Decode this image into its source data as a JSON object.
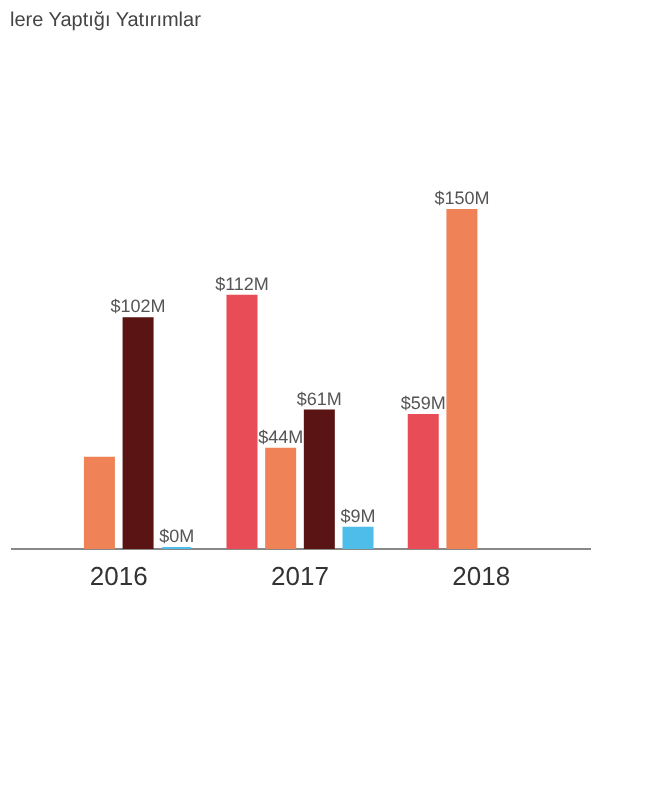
{
  "chart_data": {
    "type": "bar",
    "title": "lere Yaptığı Yatırımlar",
    "categories": [
      "2016",
      "2017",
      "2018"
    ],
    "series": [
      {
        "color": "#e84c57",
        "values": [
          null,
          112,
          59
        ],
        "value_labels": [
          null,
          "$112M",
          "$59M"
        ]
      },
      {
        "color": "#ef8256",
        "values": [
          40,
          44,
          150
        ],
        "value_labels": [
          null,
          "$44M",
          "$150M"
        ]
      },
      {
        "color": "#5a1414",
        "values": [
          102,
          61,
          null
        ],
        "value_labels": [
          "$102M",
          "$61M",
          null
        ]
      },
      {
        "color": "#4fbde9",
        "values": [
          0,
          9,
          null
        ],
        "value_labels": [
          "$0M",
          "$9M",
          null
        ]
      }
    ],
    "grid": false,
    "legend": false
  }
}
